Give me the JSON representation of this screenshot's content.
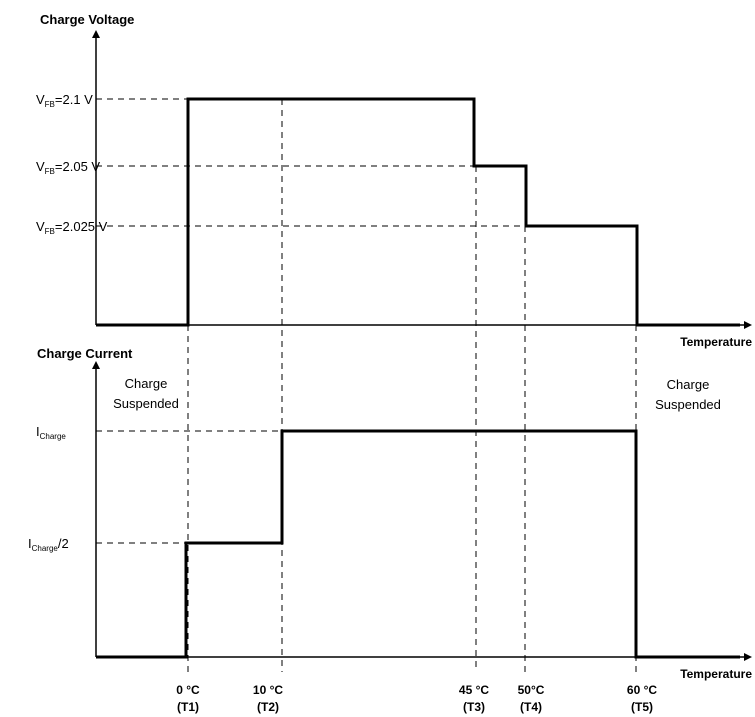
{
  "chart_data": [
    {
      "type": "line",
      "title": "Charge Voltage",
      "xlabel": "Temperature",
      "step": true,
      "x_points": [
        "T1",
        "T2",
        "T3",
        "T4",
        "T5"
      ],
      "y_levels": [
        {
          "prefix": "V",
          "sub": "FB",
          "suffix": "=2.1 V",
          "value": 2.1
        },
        {
          "prefix": "V",
          "sub": "FB",
          "suffix": "=2.05 V",
          "value": 2.05
        },
        {
          "prefix": "V",
          "sub": "FB",
          "suffix": "=2.025 V",
          "value": 2.025
        }
      ],
      "segments": [
        {
          "from": "start",
          "to": "T1",
          "level": "off"
        },
        {
          "from": "T1",
          "to": "T3",
          "level": 2.1
        },
        {
          "from": "T3",
          "to": "T4",
          "level": 2.05
        },
        {
          "from": "T4",
          "to": "T5",
          "level": 2.025
        },
        {
          "from": "T5",
          "to": "end",
          "level": "off"
        }
      ]
    },
    {
      "type": "line",
      "title": "Charge Current",
      "xlabel": "Temperature",
      "step": true,
      "y_levels": [
        {
          "prefix": "I",
          "sub": "Charge",
          "suffix": "",
          "value": 1.0
        },
        {
          "prefix": "I",
          "sub": "Charge",
          "suffix": "/2",
          "value": 0.5
        }
      ],
      "segments": [
        {
          "from": "start",
          "to": "T1",
          "level": 0
        },
        {
          "from": "T1",
          "to": "T2",
          "level": 0.5
        },
        {
          "from": "T2",
          "to": "T5",
          "level": 1.0
        },
        {
          "from": "T5",
          "to": "end",
          "level": 0
        }
      ],
      "annotations": [
        {
          "id": "left",
          "lines": [
            "Charge",
            "Suspended"
          ]
        },
        {
          "id": "right",
          "lines": [
            "Charge",
            "Suspended"
          ]
        }
      ]
    }
  ],
  "x_ticks": [
    {
      "id": "T1",
      "temp": "0 °C",
      "label": "(T1)"
    },
    {
      "id": "T2",
      "temp": "10 °C",
      "label": "(T2)"
    },
    {
      "id": "T3",
      "temp": "45 °C",
      "label": "(T3)"
    },
    {
      "id": "T4",
      "temp": "50°C",
      "label": "(T4)"
    },
    {
      "id": "T5",
      "temp": "60 °C",
      "label": "(T5)"
    }
  ]
}
